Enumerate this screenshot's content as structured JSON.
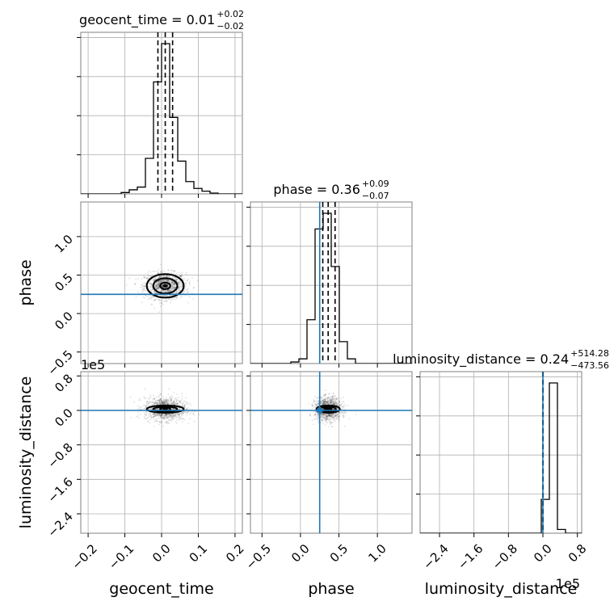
{
  "chart_data": {
    "type": "corner",
    "parameters": [
      "geocent_time",
      "phase",
      "luminosity_distance"
    ],
    "offset_labels": {
      "luminosity_distance_y": "1e5",
      "luminosity_distance_x": "1e5"
    },
    "truths": {
      "geocent_time": 0.0,
      "phase": 0.25,
      "luminosity_distance": 0.0
    },
    "titles": [
      {
        "param": "geocent_time",
        "text": "geocent_time = 0.01",
        "plus": "+0.02",
        "minus": "−0.02"
      },
      {
        "param": "phase",
        "text": "phase = 0.36",
        "plus": "+0.09",
        "minus": "−0.07"
      },
      {
        "param": "luminosity_distance",
        "text": "luminosity_distance = 0.24",
        "plus": "+514.28",
        "minus": "−473.56"
      }
    ],
    "axes": {
      "geocent_time": {
        "lim": [
          -0.22,
          0.22
        ],
        "ticks": [
          -0.2,
          -0.1,
          0.0,
          0.1,
          0.2
        ],
        "tick_labels": [
          "−0.2",
          "−0.1",
          "0.0",
          "0.1",
          "0.2"
        ]
      },
      "phase": {
        "lim": [
          -0.65,
          1.45
        ],
        "ticks": [
          -0.5,
          0.0,
          0.5,
          1.0
        ],
        "tick_labels": [
          "−0.5",
          "0.0",
          "0.5",
          "1.0"
        ]
      },
      "luminosity_distance": {
        "lim": [
          -2.85,
          0.9
        ],
        "ticks": [
          -2.4,
          -1.6,
          -0.8,
          0.0,
          0.8
        ],
        "tick_labels": [
          "−2.4",
          "−1.6",
          "−0.8",
          "0.0",
          "0.8"
        ]
      }
    },
    "histograms": {
      "geocent_time": {
        "edges": [
          -0.22,
          -0.198,
          -0.176,
          -0.154,
          -0.132,
          -0.11,
          -0.088,
          -0.066,
          -0.044,
          -0.022,
          0.0,
          0.022,
          0.044,
          0.066,
          0.088,
          0.11,
          0.132,
          0.154,
          0.176,
          0.198,
          0.22
        ],
        "counts": [
          0,
          0,
          0,
          0,
          0,
          0.5,
          1.5,
          2.5,
          13,
          41,
          55,
          28,
          12,
          4.5,
          2,
          1,
          0.3,
          0,
          0,
          0
        ],
        "quantiles": [
          -0.01,
          0.01,
          0.03
        ]
      },
      "phase": {
        "edges": [
          -0.65,
          -0.545,
          -0.44,
          -0.335,
          -0.23,
          -0.125,
          -0.02,
          0.085,
          0.19,
          0.295,
          0.4,
          0.505,
          0.61,
          0.715,
          0.82,
          0.925,
          1.03,
          1.135,
          1.24,
          1.345,
          1.45
        ],
        "counts": [
          0,
          0,
          0,
          0,
          0,
          0.5,
          1.5,
          14,
          43,
          48,
          31,
          7,
          1.5,
          0,
          0,
          0,
          0,
          0,
          0,
          0
        ],
        "quantiles": [
          0.29,
          0.36,
          0.45
        ]
      },
      "luminosity_distance": {
        "edges": [
          -2.85,
          -2.6625,
          -2.475,
          -2.2875,
          -2.1,
          -1.9125,
          -1.725,
          -1.5375,
          -1.35,
          -1.1625,
          -0.975,
          -0.7875,
          -0.6,
          -0.4125,
          -0.225,
          -0.0375,
          0.15,
          0.3375,
          0.525,
          0.7125,
          0.9
        ],
        "counts": [
          0,
          0,
          0,
          0,
          0,
          0,
          0,
          0,
          0,
          0,
          0,
          0,
          0,
          0,
          0,
          9,
          40,
          1,
          0,
          0
        ],
        "quantiles": [
          -0.0047,
          0.0,
          0.0051
        ]
      }
    },
    "ylabels": [
      "phase",
      "luminosity_distance"
    ],
    "xlabels": [
      "geocent_time",
      "phase",
      "luminosity_distance"
    ]
  }
}
